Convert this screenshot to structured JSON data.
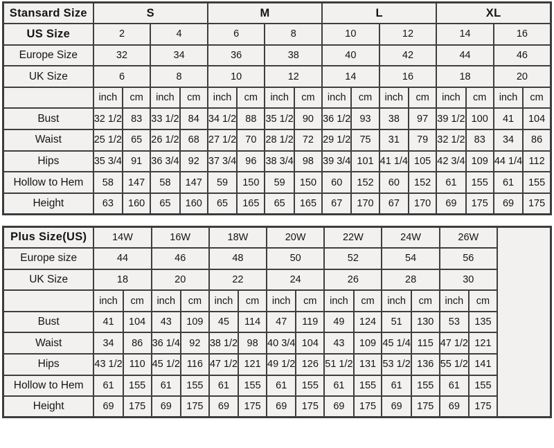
{
  "standard": {
    "title": "Stansard Size",
    "groups": [
      "S",
      "M",
      "L",
      "XL"
    ],
    "units": [
      "inch",
      "cm"
    ],
    "size_rows": [
      {
        "label": "US Size",
        "values": [
          "2",
          "4",
          "6",
          "8",
          "10",
          "12",
          "14",
          "16"
        ]
      },
      {
        "label": "Europe Size",
        "values": [
          "32",
          "34",
          "36",
          "38",
          "40",
          "42",
          "44",
          "46"
        ]
      },
      {
        "label": "UK Size",
        "values": [
          "6",
          "8",
          "10",
          "12",
          "14",
          "16",
          "18",
          "20"
        ]
      }
    ],
    "measurements": [
      {
        "label": "Bust",
        "values": [
          "32 1/2",
          "83",
          "33 1/2",
          "84",
          "34 1/2",
          "88",
          "35 1/2",
          "90",
          "36 1/2",
          "93",
          "38",
          "97",
          "39 1/2",
          "100",
          "41",
          "104"
        ]
      },
      {
        "label": "Waist",
        "values": [
          "25 1/2",
          "65",
          "26 1/2",
          "68",
          "27 1/2",
          "70",
          "28 1/2",
          "72",
          "29 1/2",
          "75",
          "31",
          "79",
          "32 1/2",
          "83",
          "34",
          "86"
        ]
      },
      {
        "label": "Hips",
        "values": [
          "35 3/4",
          "91",
          "36 3/4",
          "92",
          "37 3/4",
          "96",
          "38 3/4",
          "98",
          "39 3/4",
          "101",
          "41 1/4",
          "105",
          "42 3/4",
          "109",
          "44 1/4",
          "112"
        ]
      },
      {
        "label": "Hollow to Hem",
        "values": [
          "58",
          "147",
          "58",
          "147",
          "59",
          "150",
          "59",
          "150",
          "60",
          "152",
          "60",
          "152",
          "61",
          "155",
          "61",
          "155"
        ]
      },
      {
        "label": "Height",
        "values": [
          "63",
          "160",
          "65",
          "160",
          "65",
          "165",
          "65",
          "165",
          "67",
          "170",
          "67",
          "170",
          "69",
          "175",
          "69",
          "175"
        ]
      }
    ]
  },
  "plus": {
    "title": "Plus Size(US)",
    "groups": [
      "14W",
      "16W",
      "18W",
      "20W",
      "22W",
      "24W",
      "26W"
    ],
    "units": [
      "inch",
      "cm"
    ],
    "size_rows": [
      {
        "label": "Europe size",
        "values": [
          "44",
          "46",
          "48",
          "50",
          "52",
          "54",
          "56"
        ]
      },
      {
        "label": "UK Size",
        "values": [
          "18",
          "20",
          "22",
          "24",
          "26",
          "28",
          "30"
        ]
      }
    ],
    "measurements": [
      {
        "label": "Bust",
        "values": [
          "41",
          "104",
          "43",
          "109",
          "45",
          "114",
          "47",
          "119",
          "49",
          "124",
          "51",
          "130",
          "53",
          "135"
        ]
      },
      {
        "label": "Waist",
        "values": [
          "34",
          "86",
          "36 1/4",
          "92",
          "38 1/2",
          "98",
          "40 3/4",
          "104",
          "43",
          "109",
          "45 1/4",
          "115",
          "47 1/2",
          "121"
        ]
      },
      {
        "label": "Hips",
        "values": [
          "43 1/2",
          "110",
          "45 1/2",
          "116",
          "47 1/2",
          "121",
          "49 1/2",
          "126",
          "51 1/2",
          "131",
          "53 1/2",
          "136",
          "55 1/2",
          "141"
        ]
      },
      {
        "label": "Hollow to Hem",
        "values": [
          "61",
          "155",
          "61",
          "155",
          "61",
          "155",
          "61",
          "155",
          "61",
          "155",
          "61",
          "155",
          "61",
          "155"
        ]
      },
      {
        "label": "Height",
        "values": [
          "69",
          "175",
          "69",
          "175",
          "69",
          "175",
          "69",
          "175",
          "69",
          "175",
          "69",
          "175",
          "69",
          "175"
        ]
      }
    ]
  }
}
